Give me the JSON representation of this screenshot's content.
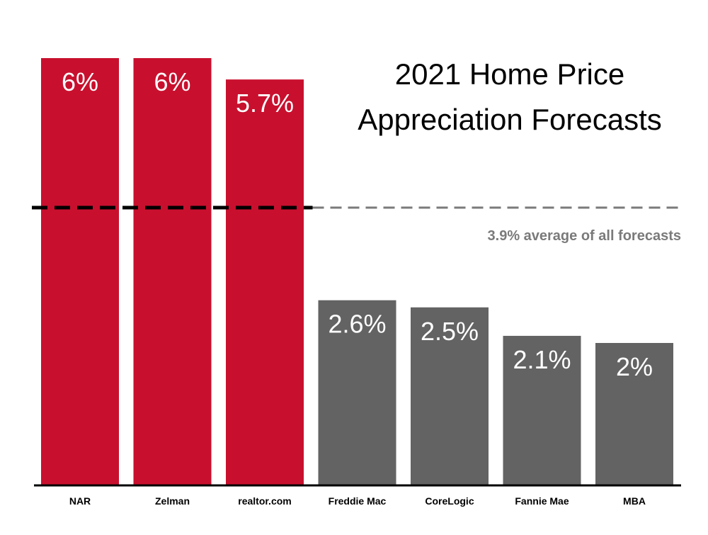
{
  "chart_data": {
    "type": "bar",
    "title_lines": [
      "2021 Home Price",
      "Appreciation Forecasts"
    ],
    "categories": [
      "NAR",
      "Zelman",
      "realtor.com",
      "Freddie Mac",
      "CoreLogic",
      "Fannie Mae",
      "MBA"
    ],
    "values": [
      6,
      6,
      5.7,
      2.6,
      2.5,
      2.1,
      2
    ],
    "value_labels": [
      "6%",
      "6%",
      "5.7%",
      "2.6%",
      "2.5%",
      "2.1%",
      "2%"
    ],
    "ylim": [
      0,
      6
    ],
    "grid": false,
    "reference_line": {
      "value": 3.9,
      "label": "3.9% average of all forecasts"
    },
    "colors": {
      "above_average": "#c8102e",
      "below_average": "#636363",
      "reference_line": "#000000",
      "reference_line_light": "#7a7a7a",
      "baseline": "#000000",
      "value_text": "#ffffff"
    }
  }
}
